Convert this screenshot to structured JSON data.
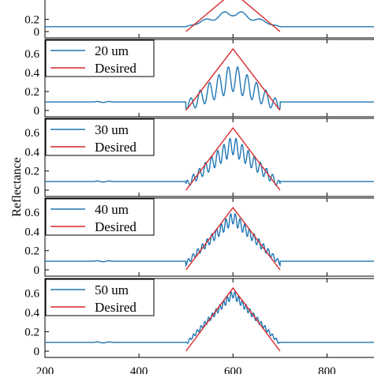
{
  "chart_data": [
    {
      "type": "line",
      "legend_location": "top-left",
      "ylim": [
        0,
        0.7
      ],
      "xlim": [
        200,
        900
      ],
      "yticks": [
        "0",
        "0.2"
      ],
      "series": [
        {
          "name": "",
          "color": "#1f77b4",
          "x": [
            200,
            500,
            520,
            540,
            560,
            580,
            600,
            620,
            640,
            660,
            680,
            700,
            900
          ],
          "y": [
            0.08,
            0.08,
            0.05,
            0.18,
            0.12,
            0.32,
            0.28,
            0.32,
            0.12,
            0.18,
            0.05,
            0.08,
            0.08
          ]
        },
        {
          "name": "",
          "color": "#d62728",
          "x": [
            500,
            600,
            700
          ],
          "y": [
            0,
            0.65,
            0
          ]
        }
      ]
    },
    {
      "type": "line",
      "legend_location": "top-left",
      "ylim": [
        0,
        0.7
      ],
      "xlim": [
        200,
        900
      ],
      "yticks": [
        "0",
        "0.2",
        "0.4",
        "0.6"
      ],
      "series": [
        {
          "name": "20 um",
          "color": "#1f77b4",
          "x": [
            200,
            500,
            600,
            700,
            900
          ],
          "y": [
            0.09,
            0.09,
            0.5,
            0.09,
            0.09
          ],
          "osc_period": 20,
          "osc_amp": 0.3
        },
        {
          "name": "Desired",
          "color": "#d62728",
          "x": [
            500,
            600,
            700
          ],
          "y": [
            0,
            0.65,
            0
          ]
        }
      ]
    },
    {
      "type": "line",
      "legend_location": "top-left",
      "ylim": [
        0,
        0.7
      ],
      "xlim": [
        200,
        900
      ],
      "yticks": [
        "0",
        "0.2",
        "0.4",
        "0.6"
      ],
      "series": [
        {
          "name": "30 um",
          "color": "#1f77b4",
          "x": [
            200,
            500,
            600,
            700,
            900
          ],
          "y": [
            0.09,
            0.09,
            0.57,
            0.09,
            0.09
          ],
          "osc_period": 13,
          "osc_amp": 0.2
        },
        {
          "name": "Desired",
          "color": "#d62728",
          "x": [
            500,
            600,
            700
          ],
          "y": [
            0,
            0.65,
            0
          ]
        }
      ]
    },
    {
      "type": "line",
      "legend_location": "top-left",
      "ylim": [
        0,
        0.7
      ],
      "xlim": [
        200,
        900
      ],
      "yticks": [
        "0",
        "0.2",
        "0.4",
        "0.6"
      ],
      "series": [
        {
          "name": "40 um",
          "color": "#1f77b4",
          "x": [
            200,
            500,
            600,
            700,
            900
          ],
          "y": [
            0.09,
            0.09,
            0.61,
            0.09,
            0.09
          ],
          "osc_period": 10,
          "osc_amp": 0.13
        },
        {
          "name": "Desired",
          "color": "#d62728",
          "x": [
            500,
            600,
            700
          ],
          "y": [
            0,
            0.65,
            0
          ]
        }
      ]
    },
    {
      "type": "line",
      "legend_location": "top-left",
      "ylim": [
        0,
        0.7
      ],
      "xlim": [
        200,
        900
      ],
      "yticks": [
        "0",
        "0.2",
        "0.4",
        "0.6"
      ],
      "xticks": [
        "200",
        "400",
        "600",
        "800"
      ],
      "series": [
        {
          "name": "50 um",
          "color": "#1f77b4",
          "x": [
            200,
            500,
            600,
            700,
            900
          ],
          "y": [
            0.09,
            0.09,
            0.63,
            0.09,
            0.09
          ],
          "osc_period": 8,
          "osc_amp": 0.08
        },
        {
          "name": "Desired",
          "color": "#d62728",
          "x": [
            500,
            600,
            700
          ],
          "y": [
            0,
            0.65,
            0
          ]
        }
      ]
    }
  ],
  "ylabel": "Reflectance"
}
